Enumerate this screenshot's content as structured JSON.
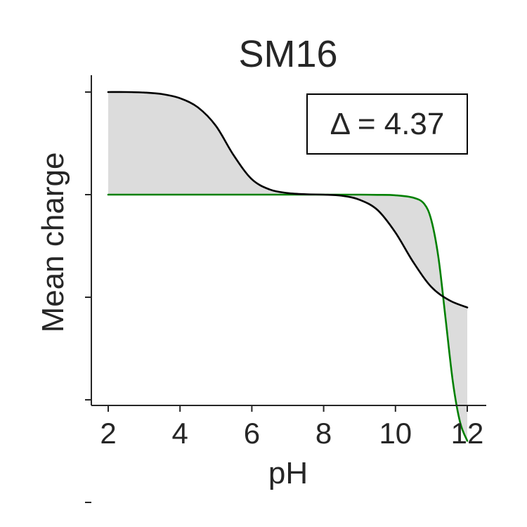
{
  "chart_data": {
    "type": "line",
    "title": "SM16",
    "xlabel": "pH",
    "ylabel": "Mean charge",
    "xlim": [
      1.5,
      12.5
    ],
    "ylim": [
      -3.0,
      1.0
    ],
    "x_ticks": [
      2,
      4,
      6,
      8,
      10,
      12
    ],
    "x_tick_labels": [
      "2",
      "4",
      "6",
      "8",
      "10",
      "12"
    ],
    "y_ticks": [
      -3,
      -2,
      -1,
      0,
      1
    ],
    "y_tick_labels": [
      "",
      "",
      "",
      "",
      ""
    ],
    "annotation": "Δ = 4.37",
    "legend_position": "top-right",
    "grid": false,
    "fill_between": {
      "color": "#dcdcdc"
    },
    "series": [
      {
        "color": "#000000",
        "x": [
          2,
          2.5,
          3,
          3.5,
          4,
          4.5,
          5,
          5.5,
          6,
          6.5,
          7,
          7.5,
          8,
          8.5,
          9,
          9.5,
          10,
          10.5,
          11,
          11.5,
          12
        ],
        "y": [
          1.0,
          1.0,
          0.995,
          0.98,
          0.94,
          0.85,
          0.67,
          0.38,
          0.15,
          0.05,
          0.015,
          0.004,
          0.0,
          -0.01,
          -0.05,
          -0.15,
          -0.37,
          -0.66,
          -0.9,
          -1.03,
          -1.1
        ]
      },
      {
        "color": "#008000",
        "x": [
          2,
          3,
          4,
          5,
          6,
          7,
          8,
          9,
          9.5,
          10,
          10.5,
          10.8,
          11,
          11.2,
          11.4,
          11.6,
          11.8,
          12
        ],
        "y": [
          0.0,
          0.0,
          0.0,
          0.0,
          0.0,
          0.0,
          0.0,
          0.0,
          -0.002,
          -0.006,
          -0.03,
          -0.09,
          -0.25,
          -0.62,
          -1.22,
          -1.83,
          -2.22,
          -2.4
        ]
      }
    ]
  }
}
